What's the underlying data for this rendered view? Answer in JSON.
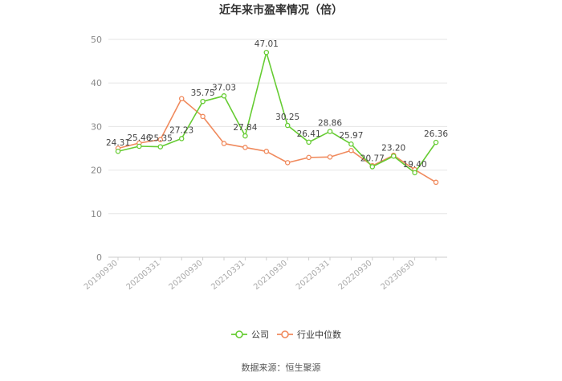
{
  "chart_data": {
    "type": "line",
    "title": "近年来市盈率情况（倍）",
    "source": "数据来源：恒生聚源",
    "ylim": [
      0,
      50
    ],
    "yticks": [
      0,
      10,
      20,
      30,
      40,
      50
    ],
    "x_tick_labels": [
      "20190930",
      "20200331",
      "20200930",
      "20210331",
      "20210930",
      "20220331",
      "20220930",
      "20230630"
    ],
    "x_tick_positions": [
      0,
      2,
      4,
      6,
      8,
      10,
      12,
      14
    ],
    "legend_position": "bottom",
    "grid": "horizontal",
    "series": [
      {
        "name": "公司",
        "color": "#66cc33",
        "values": [
          24.31,
          25.46,
          25.35,
          27.23,
          35.75,
          37.03,
          27.84,
          47.01,
          30.25,
          26.41,
          28.86,
          25.97,
          20.77,
          23.2,
          19.4,
          26.36
        ],
        "labels": [
          "24.31",
          "25.46",
          "25.35",
          "27.23",
          "35.75",
          "37.03",
          "27.84",
          "47.01",
          "30.25",
          "26.41",
          "28.86",
          "25.97",
          "20.77",
          "23.20",
          "19.40",
          "26.36"
        ]
      },
      {
        "name": "行业中位数",
        "color": "#f08a5d",
        "values": [
          25.0,
          26.2,
          27.0,
          36.4,
          32.3,
          26.1,
          25.2,
          24.3,
          21.7,
          22.9,
          23.0,
          24.5,
          21.0,
          23.4,
          20.1,
          17.2
        ]
      }
    ]
  }
}
